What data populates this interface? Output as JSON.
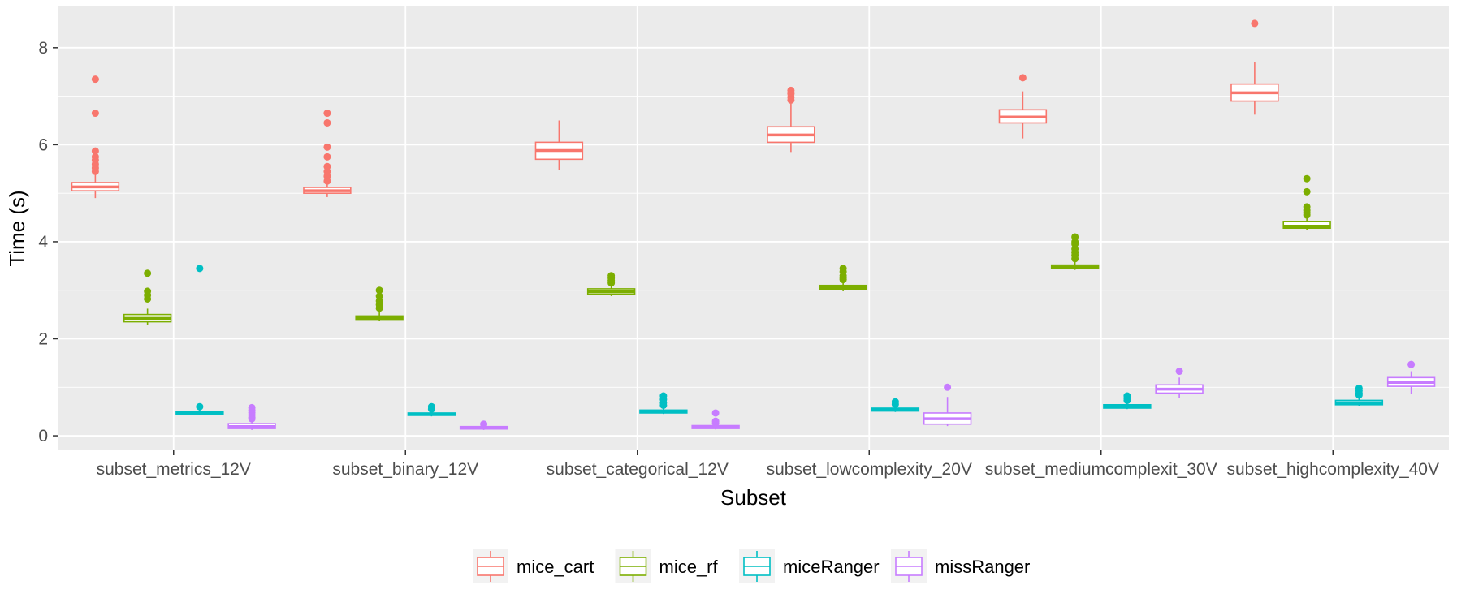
{
  "chart_data": {
    "type": "boxplot",
    "xlabel": "Subset",
    "ylabel": "Time (s)",
    "ylim": [
      -0.3,
      8.85
    ],
    "y_ticks": [
      0,
      2,
      4,
      6,
      8
    ],
    "categories": [
      "subset_metrics_12V",
      "subset_binary_12V",
      "subset_categorical_12V",
      "subset_lowcomplexity_20V",
      "subset_mediumcomplexit_30V",
      "subset_highcomplexity_40V"
    ],
    "legend_position": "bottom",
    "grid": true,
    "series": [
      {
        "name": "mice_cart",
        "color": "#F8766D",
        "boxes": [
          {
            "min": 4.9,
            "q1": 5.05,
            "median": 5.13,
            "q3": 5.22,
            "max": 5.38,
            "outliers": [
              7.35,
              6.65,
              5.87,
              5.75,
              5.68,
              5.6,
              5.52,
              5.45
            ]
          },
          {
            "min": 4.92,
            "q1": 5.0,
            "median": 5.05,
            "q3": 5.12,
            "max": 5.2,
            "outliers": [
              6.65,
              6.45,
              5.95,
              5.75,
              5.55,
              5.45,
              5.35,
              5.25
            ]
          },
          {
            "min": 5.48,
            "q1": 5.7,
            "median": 5.88,
            "q3": 6.05,
            "max": 6.5,
            "outliers": []
          },
          {
            "min": 5.85,
            "q1": 6.05,
            "median": 6.2,
            "q3": 6.37,
            "max": 6.85,
            "outliers": [
              7.12,
              7.05,
              6.98,
              6.92
            ]
          },
          {
            "min": 6.13,
            "q1": 6.45,
            "median": 6.57,
            "q3": 6.72,
            "max": 7.1,
            "outliers": [
              7.38
            ]
          },
          {
            "min": 6.62,
            "q1": 6.9,
            "median": 7.07,
            "q3": 7.25,
            "max": 7.7,
            "outliers": [
              8.5
            ]
          }
        ]
      },
      {
        "name": "mice_rf",
        "color": "#7CAE00",
        "boxes": [
          {
            "min": 2.28,
            "q1": 2.35,
            "median": 2.42,
            "q3": 2.5,
            "max": 2.62,
            "outliers": [
              3.35,
              2.98,
              2.9,
              2.82
            ]
          },
          {
            "min": 2.37,
            "q1": 2.4,
            "median": 2.43,
            "q3": 2.47,
            "max": 2.55,
            "outliers": [
              3.0,
              2.88,
              2.78,
              2.7,
              2.63
            ]
          },
          {
            "min": 2.88,
            "q1": 2.92,
            "median": 2.97,
            "q3": 3.03,
            "max": 3.1,
            "outliers": [
              3.3,
              3.25,
              3.2,
              3.15
            ]
          },
          {
            "min": 2.98,
            "q1": 3.01,
            "median": 3.05,
            "q3": 3.1,
            "max": 3.18,
            "outliers": [
              3.45,
              3.38,
              3.3,
              3.25,
              3.22
            ]
          },
          {
            "min": 3.42,
            "q1": 3.45,
            "median": 3.48,
            "q3": 3.52,
            "max": 3.6,
            "outliers": [
              4.1,
              4.0,
              3.95,
              3.85,
              3.78,
              3.72,
              3.65
            ]
          },
          {
            "min": 4.25,
            "q1": 4.28,
            "median": 4.32,
            "q3": 4.42,
            "max": 4.5,
            "outliers": [
              5.3,
              5.03,
              4.72,
              4.65,
              4.6,
              4.55
            ]
          }
        ]
      },
      {
        "name": "miceRanger",
        "color": "#00BFC4",
        "boxes": [
          {
            "min": 0.43,
            "q1": 0.45,
            "median": 0.47,
            "q3": 0.5,
            "max": 0.53,
            "outliers": [
              3.45,
              0.6
            ]
          },
          {
            "min": 0.4,
            "q1": 0.42,
            "median": 0.44,
            "q3": 0.47,
            "max": 0.5,
            "outliers": [
              0.6,
              0.55
            ]
          },
          {
            "min": 0.45,
            "q1": 0.47,
            "median": 0.5,
            "q3": 0.53,
            "max": 0.58,
            "outliers": [
              0.82,
              0.75,
              0.68,
              0.63
            ]
          },
          {
            "min": 0.49,
            "q1": 0.51,
            "median": 0.54,
            "q3": 0.57,
            "max": 0.6,
            "outliers": [
              0.7,
              0.65
            ]
          },
          {
            "min": 0.55,
            "q1": 0.57,
            "median": 0.6,
            "q3": 0.64,
            "max": 0.7,
            "outliers": [
              0.82,
              0.77,
              0.73
            ]
          },
          {
            "min": 0.62,
            "q1": 0.64,
            "median": 0.68,
            "q3": 0.73,
            "max": 0.8,
            "outliers": [
              0.98,
              0.93,
              0.88,
              0.84
            ]
          }
        ]
      },
      {
        "name": "missRanger",
        "color": "#C77CFF",
        "boxes": [
          {
            "min": 0.12,
            "q1": 0.15,
            "median": 0.19,
            "q3": 0.25,
            "max": 0.32,
            "outliers": [
              0.58,
              0.53,
              0.48,
              0.43,
              0.38,
              0.35
            ]
          },
          {
            "min": 0.12,
            "q1": 0.14,
            "median": 0.16,
            "q3": 0.19,
            "max": 0.21,
            "outliers": [
              0.24
            ]
          },
          {
            "min": 0.13,
            "q1": 0.15,
            "median": 0.18,
            "q3": 0.21,
            "max": 0.24,
            "outliers": [
              0.47,
              0.3,
              0.26
            ]
          },
          {
            "min": 0.2,
            "q1": 0.24,
            "median": 0.35,
            "q3": 0.47,
            "max": 0.8,
            "outliers": [
              1.0
            ]
          },
          {
            "min": 0.78,
            "q1": 0.88,
            "median": 0.96,
            "q3": 1.05,
            "max": 1.2,
            "outliers": [
              1.33
            ]
          },
          {
            "min": 0.87,
            "q1": 1.02,
            "median": 1.1,
            "q3": 1.2,
            "max": 1.33,
            "outliers": [
              1.47
            ]
          }
        ]
      }
    ]
  }
}
